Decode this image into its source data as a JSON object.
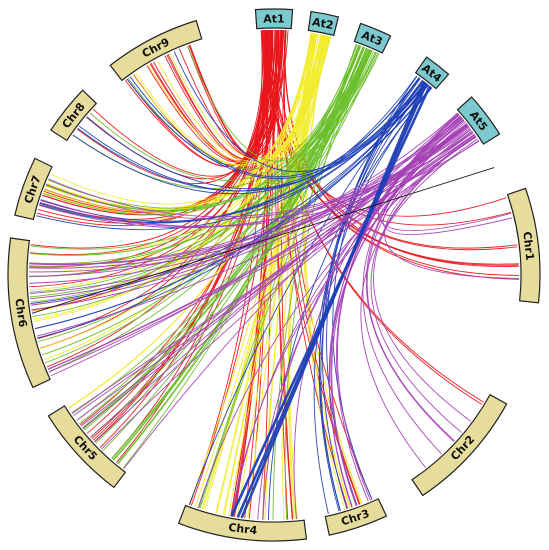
{
  "diagram": {
    "colors": {
      "ref_fill": "#7cc9cf",
      "target_fill": "#e6dc9c",
      "outline": "#222222",
      "At1": "#e8161b",
      "At2": "#f1ec2c",
      "At3": "#6cbf2c",
      "At4": "#1f3fb5",
      "At5": "#a441b5"
    },
    "reference_chromosomes": [
      {
        "id": "At1",
        "label": "At1",
        "start": -4,
        "end": 4
      },
      {
        "id": "At2",
        "label": "At2",
        "start": 8,
        "end": 14
      },
      {
        "id": "At3",
        "label": "At3",
        "start": 19,
        "end": 26
      },
      {
        "id": "At4",
        "label": "At4",
        "start": 35,
        "end": 41
      },
      {
        "id": "At5",
        "label": "At5",
        "start": 48,
        "end": 58
      }
    ],
    "target_chromosomes": [
      {
        "id": "Chr1",
        "label": "Chr1",
        "start": 71,
        "end": 96
      },
      {
        "id": "Chr2",
        "label": "Chr2",
        "start": 119,
        "end": 146
      },
      {
        "id": "Chr3",
        "label": "Chr3",
        "start": 155,
        "end": 168
      },
      {
        "id": "Chr4",
        "label": "Chr4",
        "start": 173,
        "end": 201
      },
      {
        "id": "Chr5",
        "label": "Chr5",
        "start": 217,
        "end": 238
      },
      {
        "id": "Chr6",
        "label": "Chr6",
        "start": 245,
        "end": 278
      },
      {
        "id": "Chr7",
        "label": "Chr7",
        "start": 283,
        "end": 296
      },
      {
        "id": "Chr8",
        "label": "Chr8",
        "start": 303,
        "end": 314
      },
      {
        "id": "Chr9",
        "label": "Chr9",
        "start": 322,
        "end": 343
      }
    ]
  }
}
